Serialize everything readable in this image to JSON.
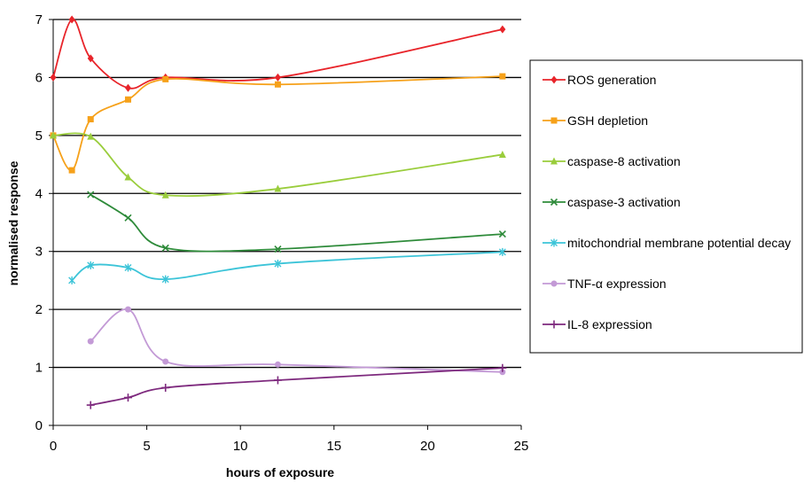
{
  "chart_data": {
    "type": "line",
    "xlabel": "hours of exposure",
    "ylabel": "normalised response",
    "xlim": [
      0,
      25
    ],
    "ylim": [
      0,
      7
    ],
    "xticks": [
      0,
      5,
      10,
      15,
      20,
      25
    ],
    "yticks": [
      0,
      1,
      2,
      3,
      4,
      5,
      6,
      7
    ],
    "grid": "horizontal",
    "legend_position": "right",
    "series": [
      {
        "name": "ROS generation",
        "color": "#e8242a",
        "marker": "diamond",
        "points": [
          [
            0,
            6
          ],
          [
            1,
            7
          ],
          [
            2,
            6.33
          ],
          [
            4,
            5.82
          ],
          [
            6,
            6.0
          ],
          [
            12,
            6.0
          ],
          [
            24,
            6.83
          ]
        ]
      },
      {
        "name": "GSH depletion",
        "color": "#f6a11a",
        "marker": "square",
        "points": [
          [
            0,
            5
          ],
          [
            1,
            4.4
          ],
          [
            2,
            5.28
          ],
          [
            4,
            5.62
          ],
          [
            6,
            5.97
          ],
          [
            12,
            5.88
          ],
          [
            24,
            6.02
          ]
        ]
      },
      {
        "name": "caspase-8 activation",
        "color": "#9acd3c",
        "marker": "triangle",
        "points": [
          [
            0,
            5
          ],
          [
            2,
            4.98
          ],
          [
            4,
            4.28
          ],
          [
            6,
            3.97
          ],
          [
            12,
            4.08
          ],
          [
            24,
            4.67
          ]
        ]
      },
      {
        "name": "caspase-3 activation",
        "color": "#2e8b3a",
        "marker": "x",
        "points": [
          [
            2,
            3.98
          ],
          [
            4,
            3.58
          ],
          [
            6,
            3.06
          ],
          [
            12,
            3.04
          ],
          [
            24,
            3.3
          ]
        ]
      },
      {
        "name": "mitochondrial membrane potential decay",
        "color": "#3cc4d8",
        "marker": "star",
        "points": [
          [
            1,
            2.5
          ],
          [
            2,
            2.76
          ],
          [
            4,
            2.72
          ],
          [
            6,
            2.52
          ],
          [
            12,
            2.79
          ],
          [
            24,
            2.99
          ]
        ]
      },
      {
        "name": "TNF-α expression",
        "color": "#c39ad6",
        "marker": "circle",
        "points": [
          [
            2,
            1.45
          ],
          [
            4,
            2.0
          ],
          [
            6,
            1.1
          ],
          [
            12,
            1.05
          ],
          [
            24,
            0.92
          ]
        ]
      },
      {
        "name": "IL-8 expression",
        "color": "#7e2a7e",
        "marker": "plus",
        "points": [
          [
            2,
            0.35
          ],
          [
            4,
            0.48
          ],
          [
            6,
            0.65
          ],
          [
            12,
            0.78
          ],
          [
            24,
            0.99
          ]
        ]
      }
    ]
  }
}
